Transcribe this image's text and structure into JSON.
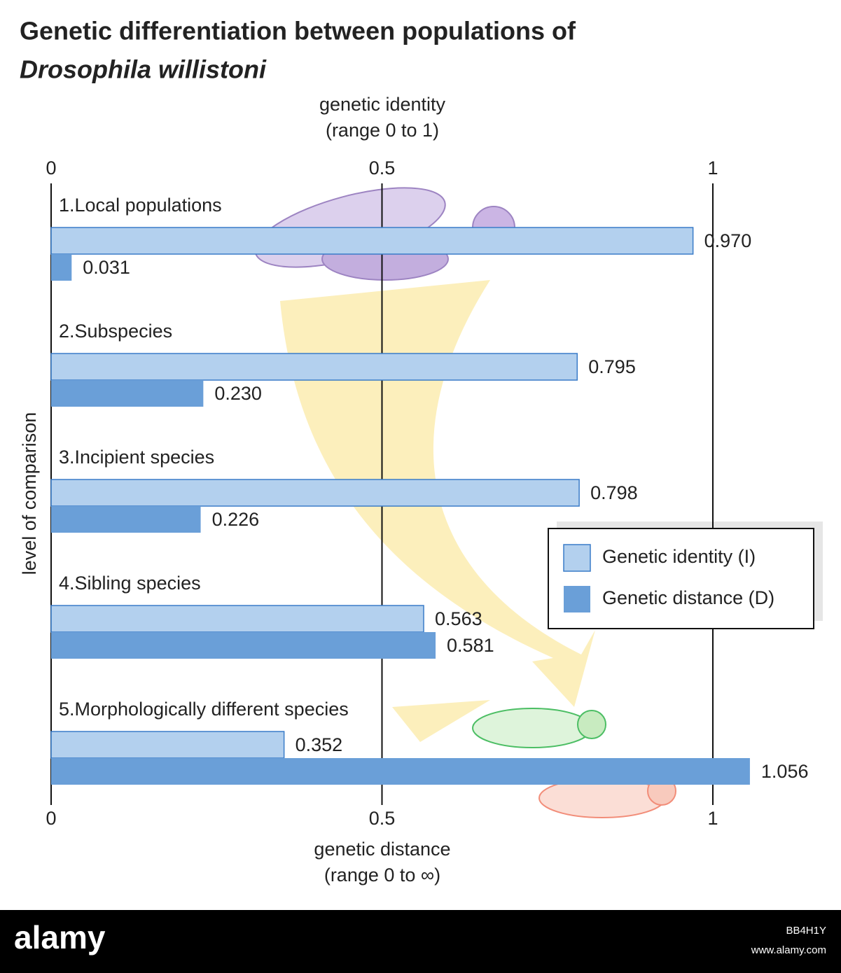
{
  "chart_data": {
    "type": "bar",
    "orientation": "horizontal",
    "title_lines": [
      "Genetic differentiation between populations of",
      "Drosophila willistoni"
    ],
    "xlabel_lines": [
      "genetic identity",
      "(range 0 to 1)"
    ],
    "x2label_lines": [
      "genetic distance",
      "(range 0 to ∞)"
    ],
    "ylabel": "level of comparison",
    "categories": [
      "1.Local populations",
      "2.Subspecies",
      "3.Incipient species",
      "4.Sibling species",
      "5.Morphologically different species"
    ],
    "series": [
      {
        "name": "Genetic identity (I)",
        "color": "#b3d0ee",
        "values": [
          0.97,
          0.795,
          0.798,
          0.563,
          0.352
        ],
        "value_labels": [
          "0.970",
          "0.795",
          "0.798",
          "0.563",
          "0.352"
        ]
      },
      {
        "name": "Genetic distance (D)",
        "color": "#6a9fd8",
        "axis": "x2",
        "values": [
          0.031,
          0.23,
          0.226,
          0.581,
          1.056
        ],
        "value_labels": [
          "0.031",
          "0.230",
          "0.226",
          "0.581",
          "1.056"
        ]
      }
    ],
    "xlim": [
      0,
      1
    ],
    "xticks": [
      0,
      0.5,
      1
    ],
    "x2lim": [
      0,
      1
    ],
    "x2ticks": [
      0,
      0.5,
      1
    ],
    "grid": true,
    "legend": "right"
  },
  "footer": {
    "brand": "alamy",
    "image_id": "BB4H1Y",
    "url": "www.alamy.com"
  }
}
